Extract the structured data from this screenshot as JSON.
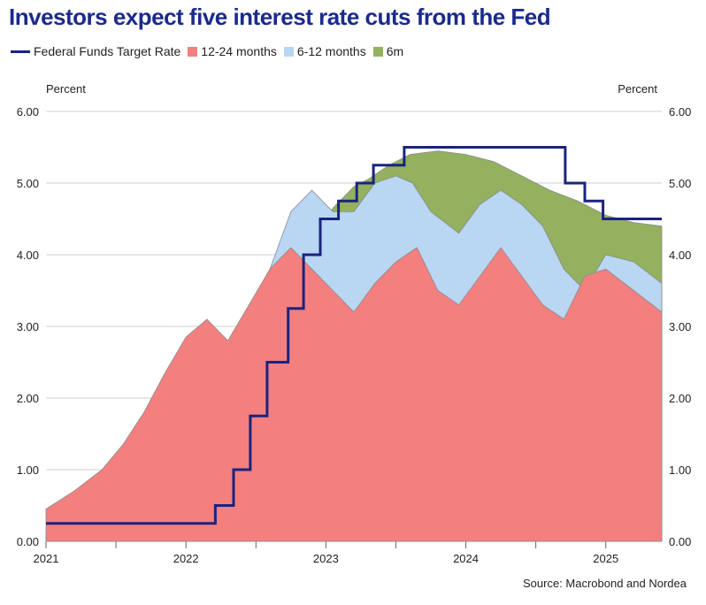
{
  "chart_data": {
    "type": "area",
    "title": "Investors expect five interest rate cuts from the Fed",
    "ylabel_left": "Percent",
    "ylabel_right": "Percent",
    "ylim": [
      0,
      6
    ],
    "yticks": [
      "0.00",
      "1.00",
      "2.00",
      "3.00",
      "4.00",
      "5.00",
      "6.00"
    ],
    "xticks": [
      "2021",
      "2022",
      "2023",
      "2024",
      "2025"
    ],
    "xlim": [
      2021.0,
      2025.4
    ],
    "grid": "horizontal",
    "legend_position": "top",
    "source": "Source: Macrobond and Nordea",
    "series": [
      {
        "name": "Federal Funds Target Rate",
        "kind": "step-line",
        "color": "#1a237e",
        "points": [
          [
            2021.0,
            0.25
          ],
          [
            2022.21,
            0.25
          ],
          [
            2022.21,
            0.5
          ],
          [
            2022.34,
            0.5
          ],
          [
            2022.34,
            1.0
          ],
          [
            2022.46,
            1.0
          ],
          [
            2022.46,
            1.75
          ],
          [
            2022.58,
            1.75
          ],
          [
            2022.58,
            2.5
          ],
          [
            2022.73,
            2.5
          ],
          [
            2022.73,
            3.25
          ],
          [
            2022.84,
            3.25
          ],
          [
            2022.84,
            4.0
          ],
          [
            2022.96,
            4.0
          ],
          [
            2022.96,
            4.5
          ],
          [
            2023.09,
            4.5
          ],
          [
            2023.09,
            4.75
          ],
          [
            2023.22,
            4.75
          ],
          [
            2023.22,
            5.0
          ],
          [
            2023.34,
            5.0
          ],
          [
            2023.34,
            5.25
          ],
          [
            2023.56,
            5.25
          ],
          [
            2023.56,
            5.5
          ],
          [
            2024.71,
            5.5
          ],
          [
            2024.71,
            5.0
          ],
          [
            2024.85,
            5.0
          ],
          [
            2024.85,
            4.75
          ],
          [
            2024.98,
            4.75
          ],
          [
            2024.98,
            4.5
          ],
          [
            2025.4,
            4.5
          ]
        ]
      },
      {
        "name": "6m",
        "kind": "area",
        "color": "#93b15f",
        "points": [
          [
            2021.0,
            0.1
          ],
          [
            2021.3,
            0.1
          ],
          [
            2021.5,
            0.14
          ],
          [
            2021.7,
            0.3
          ],
          [
            2021.85,
            0.6
          ],
          [
            2022.0,
            1.0
          ],
          [
            2022.15,
            1.5
          ],
          [
            2022.3,
            2.0
          ],
          [
            2022.45,
            2.45
          ],
          [
            2022.6,
            2.9
          ],
          [
            2022.75,
            3.5
          ],
          [
            2022.9,
            4.2
          ],
          [
            2023.05,
            4.65
          ],
          [
            2023.2,
            4.95
          ],
          [
            2023.3,
            5.05
          ],
          [
            2023.45,
            5.25
          ],
          [
            2023.6,
            5.4
          ],
          [
            2023.8,
            5.45
          ],
          [
            2024.0,
            5.4
          ],
          [
            2024.2,
            5.3
          ],
          [
            2024.4,
            5.1
          ],
          [
            2024.6,
            4.9
          ],
          [
            2024.8,
            4.75
          ],
          [
            2025.0,
            4.55
          ],
          [
            2025.2,
            4.45
          ],
          [
            2025.4,
            4.4
          ]
        ]
      },
      {
        "name": "6-12 months",
        "kind": "area",
        "color": "#b9d6f2",
        "points": [
          [
            2021.0,
            0.15
          ],
          [
            2021.2,
            0.2
          ],
          [
            2021.4,
            0.3
          ],
          [
            2021.6,
            0.6
          ],
          [
            2021.8,
            1.1
          ],
          [
            2022.0,
            1.8
          ],
          [
            2022.2,
            2.5
          ],
          [
            2022.4,
            3.1
          ],
          [
            2022.6,
            3.8
          ],
          [
            2022.75,
            4.6
          ],
          [
            2022.9,
            4.9
          ],
          [
            2023.05,
            4.6
          ],
          [
            2023.2,
            4.6
          ],
          [
            2023.35,
            5.0
          ],
          [
            2023.5,
            5.1
          ],
          [
            2023.62,
            5.0
          ],
          [
            2023.75,
            4.6
          ],
          [
            2023.95,
            4.3
          ],
          [
            2024.1,
            4.7
          ],
          [
            2024.25,
            4.9
          ],
          [
            2024.4,
            4.7
          ],
          [
            2024.55,
            4.4
          ],
          [
            2024.7,
            3.8
          ],
          [
            2024.85,
            3.5
          ],
          [
            2025.0,
            4.0
          ],
          [
            2025.2,
            3.9
          ],
          [
            2025.4,
            3.6
          ]
        ]
      },
      {
        "name": "12-24 months",
        "kind": "area",
        "color": "#f47f7f",
        "points": [
          [
            2021.0,
            0.45
          ],
          [
            2021.2,
            0.7
          ],
          [
            2021.4,
            1.0
          ],
          [
            2021.55,
            1.35
          ],
          [
            2021.7,
            1.8
          ],
          [
            2021.85,
            2.35
          ],
          [
            2022.0,
            2.85
          ],
          [
            2022.15,
            3.1
          ],
          [
            2022.3,
            2.8
          ],
          [
            2022.45,
            3.3
          ],
          [
            2022.6,
            3.8
          ],
          [
            2022.75,
            4.1
          ],
          [
            2022.9,
            3.8
          ],
          [
            2023.05,
            3.5
          ],
          [
            2023.2,
            3.2
          ],
          [
            2023.35,
            3.6
          ],
          [
            2023.5,
            3.9
          ],
          [
            2023.65,
            4.1
          ],
          [
            2023.8,
            3.5
          ],
          [
            2023.95,
            3.3
          ],
          [
            2024.1,
            3.7
          ],
          [
            2024.25,
            4.1
          ],
          [
            2024.4,
            3.7
          ],
          [
            2024.55,
            3.3
          ],
          [
            2024.7,
            3.1
          ],
          [
            2024.85,
            3.7
          ],
          [
            2025.0,
            3.8
          ],
          [
            2025.2,
            3.5
          ],
          [
            2025.4,
            3.2
          ]
        ]
      }
    ]
  }
}
